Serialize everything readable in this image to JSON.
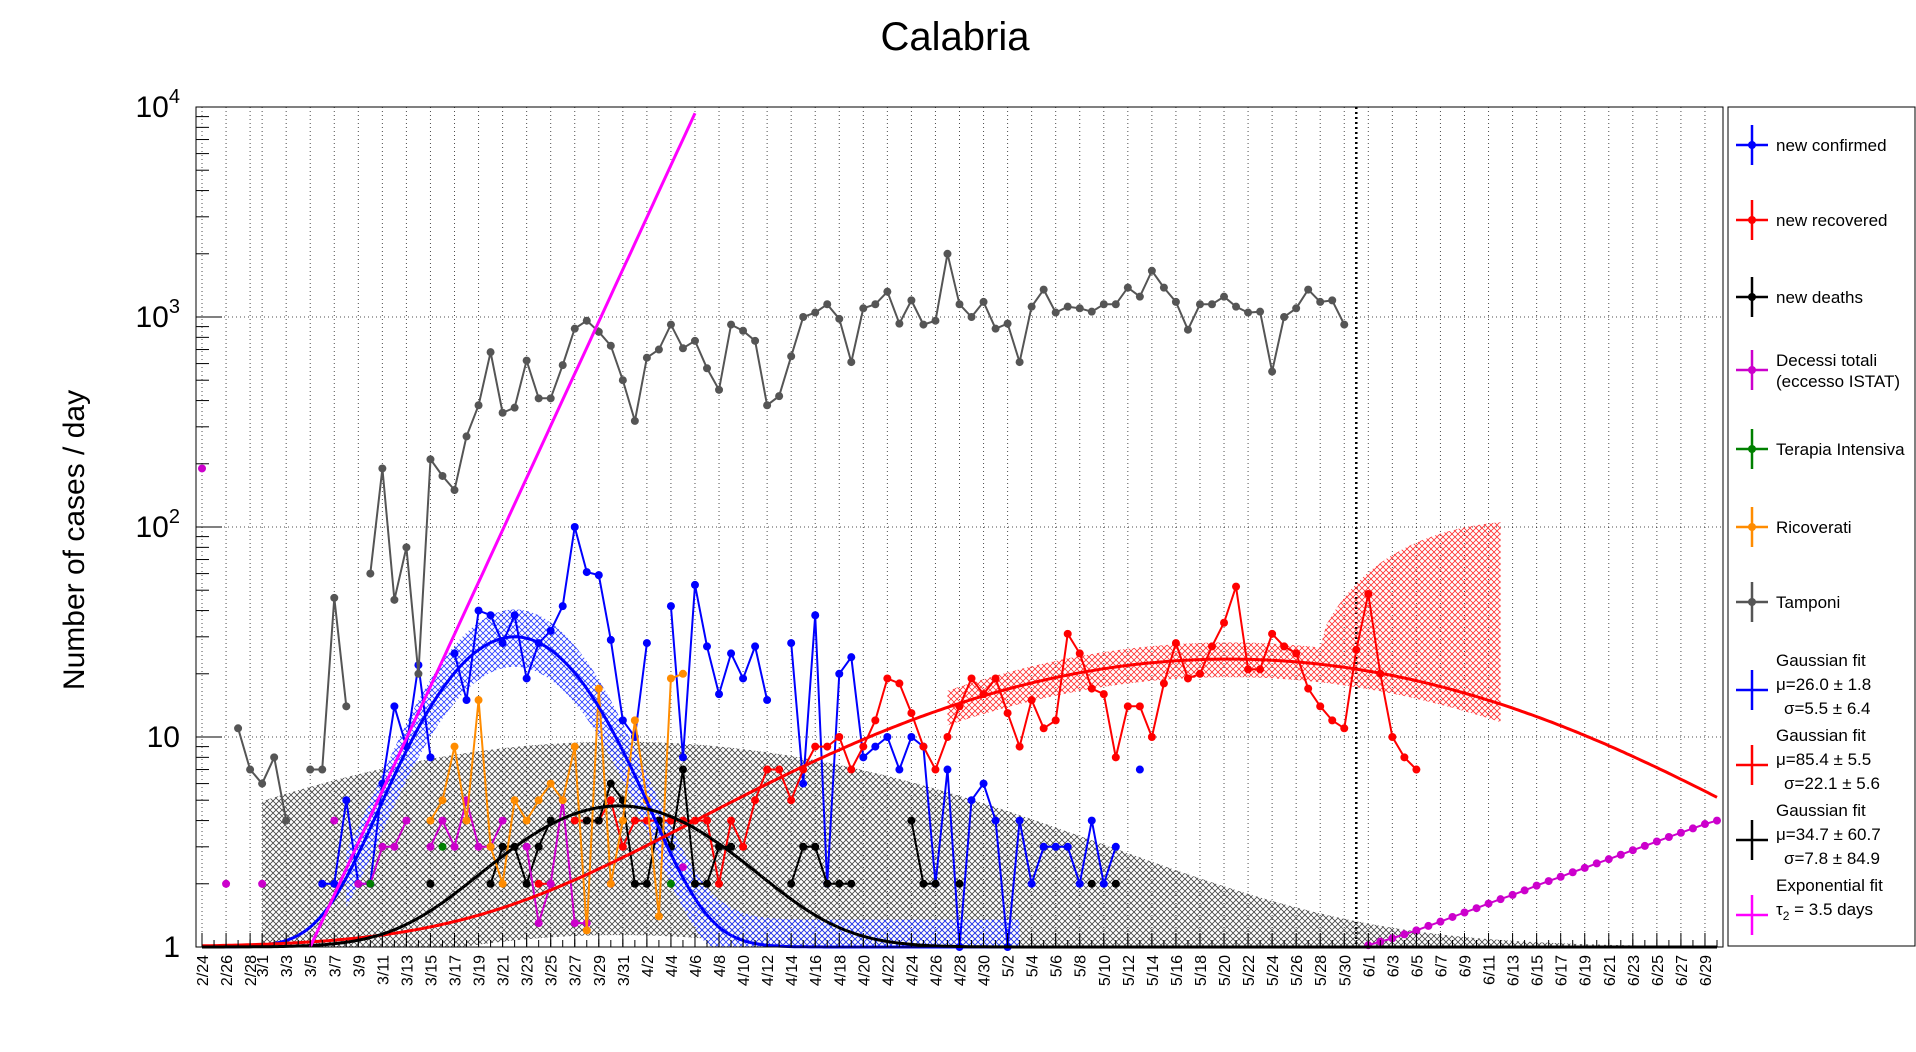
{
  "chart_data": {
    "type": "line",
    "title": "Calabria",
    "xlabel": "",
    "ylabel": "Number of cases / day",
    "yscale": "log",
    "ylim": [
      1,
      10000
    ],
    "y_tick_labels": [
      {
        "value": 1,
        "label": "1"
      },
      {
        "value": 10,
        "label": "10"
      },
      {
        "value": 100,
        "label": "10",
        "exp": "2"
      },
      {
        "value": 1000,
        "label": "10",
        "exp": "3"
      },
      {
        "value": 10000,
        "label": "10",
        "exp": "4"
      }
    ],
    "x_start": "2/24",
    "x_tick_labels": [
      "2/24",
      "2/26",
      "2/28",
      "3/1",
      "3/3",
      "3/5",
      "3/7",
      "3/9",
      "3/11",
      "3/13",
      "3/15",
      "3/17",
      "3/19",
      "3/21",
      "3/23",
      "3/25",
      "3/27",
      "3/29",
      "3/31",
      "4/2",
      "4/4",
      "4/6",
      "4/8",
      "4/10",
      "4/12",
      "4/14",
      "4/16",
      "4/18",
      "4/20",
      "4/22",
      "4/24",
      "4/26",
      "4/28",
      "4/30",
      "5/2",
      "5/4",
      "5/6",
      "5/8",
      "5/10",
      "5/12",
      "5/14",
      "5/16",
      "5/18",
      "5/20",
      "5/22",
      "5/24",
      "5/26",
      "5/28",
      "5/30",
      "6/1",
      "6/3",
      "6/5",
      "6/7",
      "6/9",
      "6/11",
      "6/13",
      "6/15",
      "6/17",
      "6/19",
      "6/21",
      "6/23",
      "6/25",
      "6/27",
      "6/29"
    ],
    "x_tick_day_index": [
      0,
      2,
      4,
      5,
      7,
      9,
      11,
      13,
      15,
      17,
      19,
      21,
      23,
      25,
      27,
      29,
      31,
      33,
      35,
      37,
      39,
      41,
      43,
      45,
      47,
      49,
      51,
      53,
      55,
      57,
      59,
      61,
      63,
      65,
      67,
      69,
      71,
      73,
      75,
      77,
      79,
      81,
      83,
      85,
      87,
      89,
      91,
      93,
      95,
      97,
      99,
      101,
      103,
      105,
      107,
      109,
      111,
      113,
      115,
      117,
      119,
      121,
      123,
      125
    ],
    "x_days_total": 127,
    "vertical_line_date": "5/31",
    "grid": true,
    "legend_position": "right",
    "series": [
      {
        "name": "new confirmed",
        "color": "#0000ff",
        "values": [
          null,
          null,
          null,
          null,
          null,
          null,
          null,
          null,
          null,
          null,
          2,
          2,
          5,
          2,
          2,
          6,
          14,
          9,
          22,
          8,
          null,
          25,
          15,
          40,
          38,
          28,
          38,
          19,
          28,
          32,
          42,
          100,
          61,
          59,
          29,
          12,
          10,
          28,
          null,
          42,
          8,
          53,
          27,
          16,
          25,
          19,
          27,
          15,
          null,
          28,
          6,
          38,
          2,
          20,
          24,
          8,
          9,
          10,
          7,
          10,
          9,
          2,
          7,
          1,
          5,
          6,
          4,
          1,
          4,
          2,
          3,
          3,
          3,
          2,
          4,
          2,
          3,
          null,
          7
        ]
      },
      {
        "name": "new recovered",
        "color": "#ff0000",
        "values": [
          null,
          null,
          null,
          null,
          null,
          null,
          null,
          null,
          null,
          null,
          null,
          null,
          null,
          null,
          null,
          null,
          null,
          null,
          null,
          null,
          null,
          null,
          null,
          null,
          null,
          null,
          null,
          null,
          2,
          2,
          null,
          4,
          4,
          4,
          5,
          3,
          4,
          4,
          4,
          4,
          4,
          4,
          4,
          2,
          4,
          3,
          5,
          7,
          7,
          5,
          7,
          9,
          9,
          10,
          7,
          9,
          12,
          19,
          18,
          13,
          9,
          7,
          10,
          14,
          19,
          16,
          19,
          13,
          9,
          15,
          11,
          12,
          31,
          25,
          17,
          16,
          8,
          14,
          14,
          10,
          18,
          28,
          19,
          20,
          27,
          35,
          52,
          21,
          21,
          31,
          27,
          25,
          17,
          14,
          12,
          11,
          26,
          48,
          20,
          10,
          8,
          7
        ]
      },
      {
        "name": "new deaths",
        "color": "#000000",
        "values": [
          null,
          null,
          null,
          null,
          null,
          null,
          null,
          null,
          null,
          null,
          null,
          null,
          null,
          null,
          null,
          null,
          null,
          null,
          null,
          2,
          null,
          null,
          null,
          null,
          2,
          3,
          3,
          2,
          3,
          4,
          null,
          null,
          4,
          4,
          6,
          5,
          2,
          2,
          4,
          3,
          7,
          2,
          2,
          3,
          3,
          null,
          null,
          null,
          null,
          2,
          3,
          3,
          2,
          2,
          2,
          null,
          null,
          null,
          null,
          4,
          2,
          2,
          null,
          2,
          null,
          null,
          null,
          null,
          null,
          null,
          null,
          null,
          null,
          null,
          2,
          null,
          2
        ]
      },
      {
        "name": "Decessi totali (eccesso ISTAT)",
        "color": "#cc00cc",
        "values": [
          190,
          null,
          2,
          null,
          null,
          2,
          null,
          null,
          null,
          null,
          null,
          4,
          null,
          2,
          2,
          3,
          3,
          4,
          null,
          3,
          4,
          3,
          5,
          3,
          3,
          4,
          null,
          3,
          1.3,
          2,
          5,
          1.3,
          1.3,
          null,
          2,
          null,
          null,
          null,
          null,
          null,
          2.4,
          null,
          null,
          null,
          null,
          null,
          null,
          null,
          null,
          null,
          null,
          null,
          null,
          null,
          null,
          null,
          null,
          null,
          null,
          null,
          null,
          null,
          null,
          null,
          null,
          null,
          null,
          null,
          null,
          null,
          null,
          null,
          null,
          null,
          null,
          null,
          null,
          null,
          null,
          null,
          null,
          null,
          null,
          null,
          null,
          null,
          null,
          null,
          null,
          null,
          null,
          null,
          null,
          null,
          null,
          null,
          null,
          1.02,
          1.06,
          1.1,
          1.15,
          1.2,
          1.26,
          1.32,
          1.39,
          1.46,
          1.53,
          1.61,
          1.69,
          1.77,
          1.86,
          1.96,
          2.06,
          2.16,
          2.27,
          2.38,
          2.5,
          2.62,
          2.75,
          2.89,
          3.03,
          3.18,
          3.34,
          3.5,
          3.67,
          3.85,
          4.0
        ]
      },
      {
        "name": "Terapia Intensiva",
        "color": "#008000",
        "values": [
          null,
          null,
          null,
          null,
          null,
          null,
          null,
          null,
          null,
          null,
          null,
          null,
          null,
          null,
          2,
          null,
          null,
          null,
          null,
          null,
          3,
          null,
          null,
          null,
          null,
          null,
          null,
          null,
          null,
          null,
          null,
          null,
          null,
          null,
          null,
          null,
          null,
          null,
          null,
          2
        ]
      },
      {
        "name": "Ricoverati",
        "color": "#ff8c00",
        "values": [
          null,
          null,
          null,
          null,
          null,
          null,
          null,
          null,
          null,
          null,
          null,
          null,
          null,
          null,
          null,
          null,
          null,
          null,
          null,
          4,
          5,
          9,
          4,
          15,
          3,
          2,
          5,
          4,
          5,
          6,
          5,
          9,
          1.2,
          17,
          2,
          4,
          12,
          5,
          1.4,
          19,
          20
        ]
      },
      {
        "name": "Tamponi",
        "color": "#555555",
        "values": [
          null,
          null,
          null,
          11,
          7,
          6,
          8,
          4,
          null,
          7,
          7,
          46,
          14,
          null,
          60,
          190,
          45,
          80,
          20,
          210,
          175,
          150,
          270,
          380,
          680,
          350,
          370,
          620,
          410,
          410,
          590,
          880,
          960,
          850,
          730,
          500,
          320,
          640,
          700,
          920,
          710,
          770,
          570,
          450,
          920,
          860,
          770,
          380,
          420,
          650,
          1000,
          1050,
          1150,
          980,
          610,
          1100,
          1150,
          1320,
          930,
          1200,
          920,
          960,
          2000,
          1150,
          1000,
          1180,
          880,
          930,
          610,
          1120,
          1350,
          1050,
          1120,
          1100,
          1060,
          1150,
          1150,
          1380,
          1250,
          1660,
          1380,
          1180,
          870,
          1150,
          1150,
          1250,
          1120,
          1050,
          1060,
          550,
          1000,
          1100,
          1350,
          1180,
          1200,
          920
        ]
      }
    ],
    "fits": [
      {
        "name": "Gaussian fit",
        "color": "#0000ff",
        "mu": 26.0,
        "sigma": 5.5,
        "amp": 29,
        "params": [
          "μ=26.0 ± 1.8",
          "σ=5.5 ± 6.4"
        ]
      },
      {
        "name": "Gaussian fit",
        "color": "#ff0000",
        "mu": 85.4,
        "sigma": 22.1,
        "amp": 22.5,
        "params": [
          "μ=85.4 ± 5.5",
          "σ=22.1 ± 5.6"
        ]
      },
      {
        "name": "Gaussian fit",
        "color": "#000000",
        "mu": 34.7,
        "sigma": 7.8,
        "amp": 3.7,
        "params": [
          "μ=34.7 ± 60.7",
          "σ=7.8 ± 84.9"
        ]
      },
      {
        "name": "Exponential fit",
        "color": "#ff00ff",
        "tau": 3.5,
        "params": [
          "τ",
          "2",
          " = 3.5 days"
        ]
      }
    ]
  }
}
